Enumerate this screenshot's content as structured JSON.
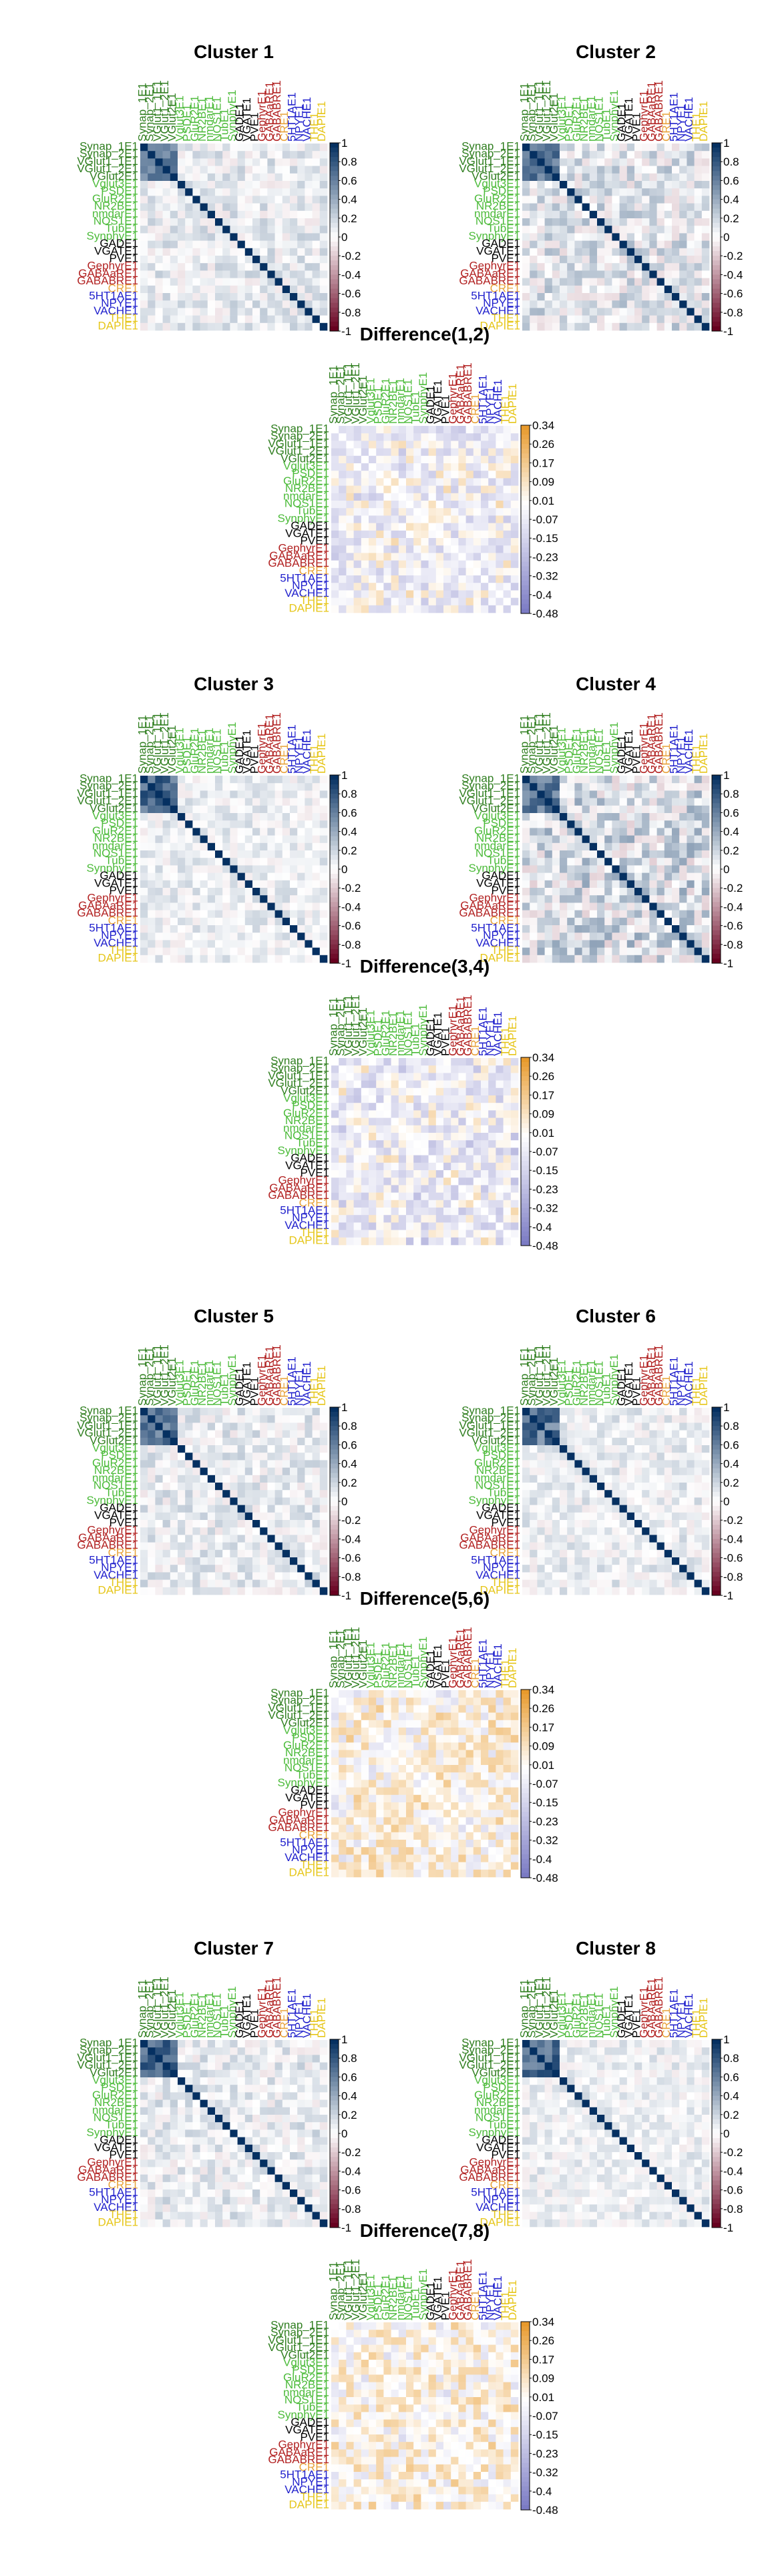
{
  "colors": {
    "labels": {
      "dark_green": "#2e7d1e",
      "green": "#4cbb3a",
      "black": "#000000",
      "red": "#b22222",
      "orange": "#e8a33a",
      "blue": "#1f1fcc",
      "gold": "#e6c619"
    },
    "corr_scale": {
      "neg": "#67001f",
      "mid": "#ffffff",
      "pos": "#053061"
    },
    "diff_scale": {
      "neg": "#7b7bc4",
      "mid": "#ffffff",
      "pos": "#e89a2c"
    }
  },
  "labels": [
    {
      "text": "Synap_1E1",
      "color": "dark_green"
    },
    {
      "text": "Synap_2E1",
      "color": "dark_green"
    },
    {
      "text": "VGlut1_1E1",
      "color": "dark_green"
    },
    {
      "text": "VGlut1_2E1",
      "color": "dark_green"
    },
    {
      "text": "VGlut2E1",
      "color": "dark_green"
    },
    {
      "text": "Vglut3E1",
      "color": "green"
    },
    {
      "text": "PSDE1",
      "color": "green"
    },
    {
      "text": "GluR2E1",
      "color": "green"
    },
    {
      "text": "NR2BE1",
      "color": "green"
    },
    {
      "text": "nmdarE1",
      "color": "green"
    },
    {
      "text": "NOS1E1",
      "color": "green"
    },
    {
      "text": "TubE1",
      "color": "green"
    },
    {
      "text": "SynphyE1",
      "color": "green"
    },
    {
      "text": "GADE1",
      "color": "black"
    },
    {
      "text": "VGATE1",
      "color": "black"
    },
    {
      "text": "PVE1",
      "color": "black"
    },
    {
      "text": "GephyrE1",
      "color": "red"
    },
    {
      "text": "GABAaRE1",
      "color": "red"
    },
    {
      "text": "GABABRE1",
      "color": "red"
    },
    {
      "text": "CRE1",
      "color": "orange"
    },
    {
      "text": "5HT1AE1",
      "color": "blue"
    },
    {
      "text": "NPYE1",
      "color": "blue"
    },
    {
      "text": "VACHE1",
      "color": "blue"
    },
    {
      "text": "THE1",
      "color": "gold"
    },
    {
      "text": "DAPIE1",
      "color": "gold"
    }
  ],
  "corr_ticks": [
    "1",
    "0.8",
    "0.6",
    "0.4",
    "0.2",
    "0",
    "-0.2",
    "-0.4",
    "-0.6",
    "-0.8",
    "-1"
  ],
  "diff_ticks": [
    "0.34",
    "0.26",
    "0.17",
    "0.09",
    "0.01",
    "-0.07",
    "-0.15",
    "-0.23",
    "-0.32",
    "-0.4",
    "-0.48"
  ],
  "chart_data": [
    {
      "type": "heatmap",
      "title": "Cluster 1",
      "kind": "corr",
      "seed": 11,
      "tint": 0.18
    },
    {
      "type": "heatmap",
      "title": "Cluster 2",
      "kind": "corr",
      "seed": 23,
      "tint": 0.25
    },
    {
      "type": "heatmap",
      "title": "Difference(1,2)",
      "kind": "diff",
      "seed": 37,
      "bias": -0.08
    },
    {
      "type": "heatmap",
      "title": "Cluster 3",
      "kind": "corr",
      "seed": 41,
      "tint": 0.15
    },
    {
      "type": "heatmap",
      "title": "Cluster 4",
      "kind": "corr",
      "seed": 53,
      "tint": 0.32
    },
    {
      "type": "heatmap",
      "title": "Difference(3,4)",
      "kind": "diff",
      "seed": 61,
      "bias": -0.12
    },
    {
      "type": "heatmap",
      "title": "Cluster 5",
      "kind": "corr",
      "seed": 71,
      "tint": 0.18
    },
    {
      "type": "heatmap",
      "title": "Cluster 6",
      "kind": "corr",
      "seed": 83,
      "tint": 0.16
    },
    {
      "type": "heatmap",
      "title": "Difference(5,6)",
      "kind": "diff",
      "seed": 97,
      "bias": 0.05
    },
    {
      "type": "heatmap",
      "title": "Cluster 7",
      "kind": "corr",
      "seed": 101,
      "tint": 0.18
    },
    {
      "type": "heatmap",
      "title": "Cluster 8",
      "kind": "corr",
      "seed": 113,
      "tint": 0.14
    },
    {
      "type": "heatmap",
      "title": "Difference(7,8)",
      "kind": "diff",
      "seed": 127,
      "bias": 0.06
    }
  ]
}
